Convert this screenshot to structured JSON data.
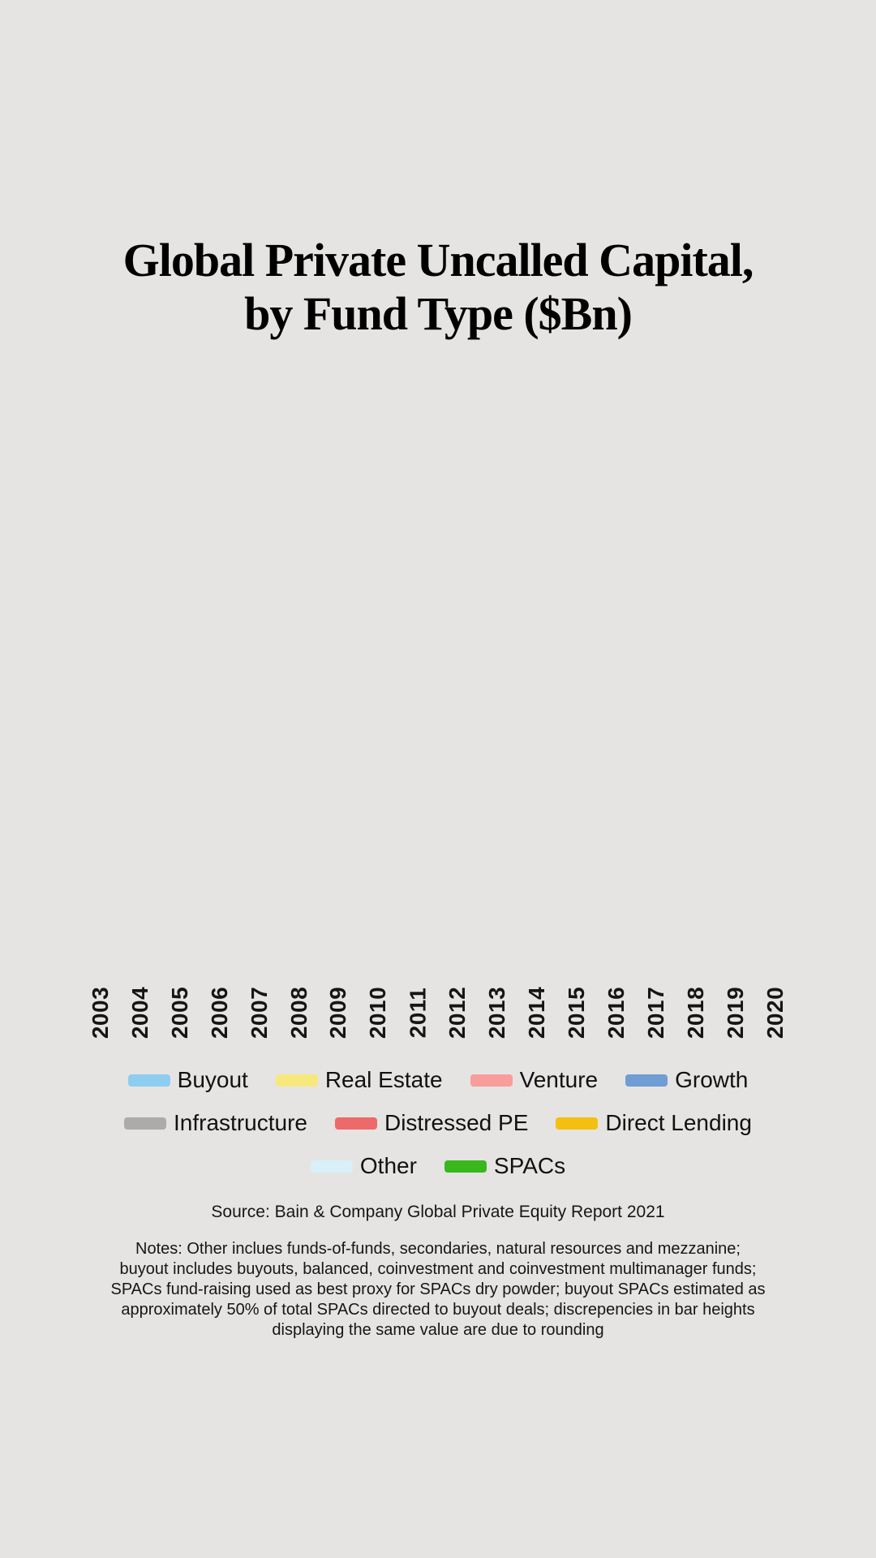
{
  "title": {
    "line1": "Global Private Uncalled Capital,",
    "line2": "by Fund Type ($Bn)"
  },
  "source": "Source: Bain & Company Global Private Equity Report 2021",
  "notes_lines": [
    "Notes: Other inclues funds-of-funds, secondaries, natural resources and mezzanine;",
    "buyout includes buyouts, balanced, coinvestment and coinvestment multimanager funds;",
    "SPACs fund-raising used as best proxy for SPACs dry powder; buyout SPACs estimated as",
    "approximately 50% of total SPACs directed to buyout deals; discrepencies in bar heights",
    "displaying the same value are due to rounding"
  ],
  "legend": {
    "rows": [
      [
        {
          "label": "Buyout",
          "color": "#8ecdf0"
        },
        {
          "label": "Real Estate",
          "color": "#f6e87d"
        },
        {
          "label": "Venture",
          "color": "#f89c9c"
        },
        {
          "label": "Growth",
          "color": "#6f9dd4"
        }
      ],
      [
        {
          "label": "Infrastructure",
          "color": "#ababab"
        },
        {
          "label": "Distressed PE",
          "color": "#ed6a6a"
        },
        {
          "label": "Direct Lending",
          "color": "#f3c011"
        }
      ],
      [
        {
          "label": "Other",
          "color": "#d8f0f8"
        },
        {
          "label": "SPACs",
          "color": "#38b81c"
        }
      ]
    ]
  },
  "chart_data": {
    "type": "bar",
    "stacked": true,
    "title": "Global Private Uncalled Capital, by Fund Type ($Bn)",
    "categories": [
      "2003",
      "2004",
      "2005",
      "2006",
      "2007",
      "2008",
      "2009",
      "2010",
      "2011",
      "2012",
      "2013",
      "2014",
      "2015",
      "2016",
      "2017",
      "2018",
      "2019",
      "2020"
    ],
    "series": [
      {
        "name": "Buyout",
        "color": "#8ecdf0"
      },
      {
        "name": "Real Estate",
        "color": "#f6e87d"
      },
      {
        "name": "Venture",
        "color": "#f89c9c"
      },
      {
        "name": "Growth",
        "color": "#6f9dd4"
      },
      {
        "name": "Infrastructure",
        "color": "#ababab"
      },
      {
        "name": "Distressed PE",
        "color": "#ed6a6a"
      },
      {
        "name": "Direct Lending",
        "color": "#f3c011"
      },
      {
        "name": "Other",
        "color": "#d8f0f8"
      },
      {
        "name": "SPACs",
        "color": "#38b81c"
      }
    ],
    "values_visible": false,
    "plot_area_empty": true,
    "xlabel": "",
    "ylabel": "",
    "x_tick_rotation": 90,
    "grid": false,
    "legend_position": "bottom",
    "background_color": "#e5e4e2"
  }
}
